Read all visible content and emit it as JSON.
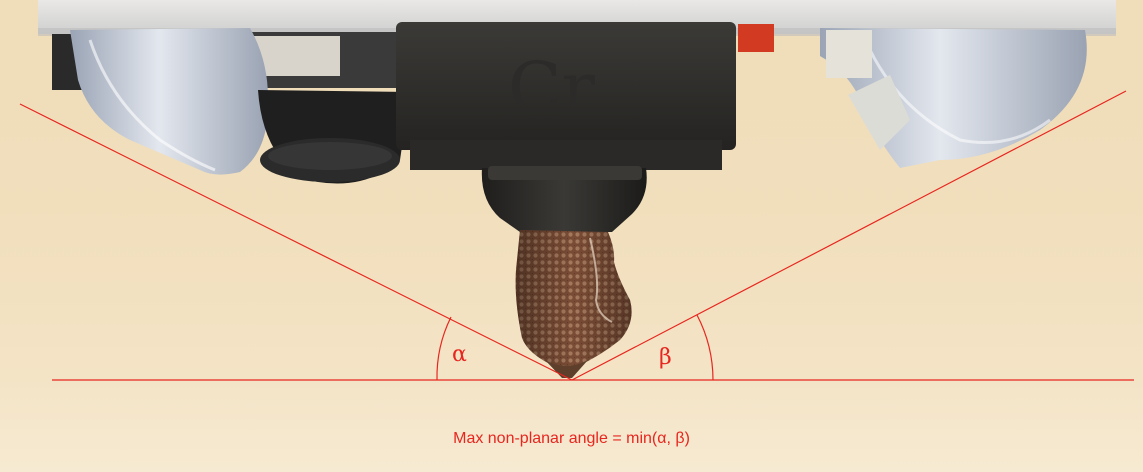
{
  "figure": {
    "alpha_label": "α",
    "beta_label": "β",
    "caption": "Max non-planar angle = min(α,  β)"
  },
  "colors": {
    "annotation": "#e8261f",
    "background": "#f1dfbd"
  },
  "icons": {
    "photo": "printer-nozzle-photo"
  }
}
